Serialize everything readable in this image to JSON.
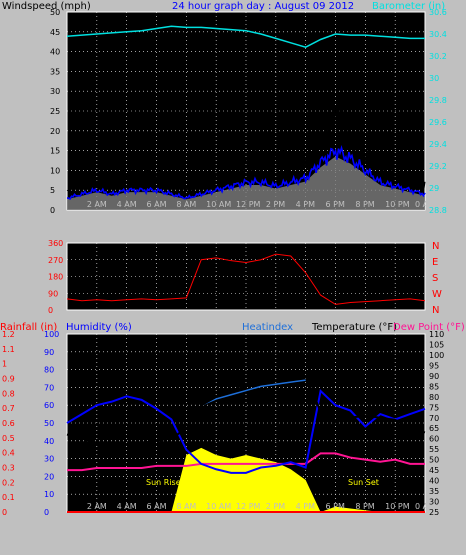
{
  "colors": {
    "background": "#c0c0c0",
    "plot": "#000000",
    "wind": "#000000",
    "gust_fill": "#808080",
    "wind_avg": "#0000ff",
    "barometer": "#00e0e0",
    "direction": "#ff0000",
    "humidity": "#0000ff",
    "temperature": "#000000",
    "dewpoint": "#ff1493",
    "heatindex": "#1e6fd9",
    "solar": "#ffff00",
    "rainfall": "#ff0000",
    "title": "#0000ff"
  },
  "chart_data": [
    {
      "type": "line",
      "title": "24 hour graph day : August 09 2012",
      "ylabel": "Windspeed (mph)",
      "y2label": "Barometer (in)",
      "x_tick_labels": [
        "2 AM",
        "4 AM",
        "6 AM",
        "8 AM",
        "10 AM",
        "12 PM",
        "2 PM",
        "4 PM",
        "6 PM",
        "8 PM",
        "10 PM",
        "0 AM"
      ],
      "ylim": [
        0,
        50
      ],
      "y_ticks": [
        "0",
        "5",
        "10",
        "15",
        "20",
        "25",
        "30",
        "35",
        "40",
        "45",
        "50"
      ],
      "y2lim": [
        28.8,
        30.6
      ],
      "y2_ticks": [
        "28.8",
        "29",
        "29.2",
        "29.4",
        "29.6",
        "29.8",
        "30",
        "30.2",
        "30.4",
        "30.6"
      ],
      "x_hours": [
        0,
        1,
        2,
        3,
        4,
        5,
        6,
        7,
        8,
        9,
        10,
        11,
        12,
        13,
        14,
        15,
        16,
        17,
        18,
        19,
        20,
        21,
        22,
        23,
        24
      ],
      "series": [
        {
          "key": "gust",
          "values": [
            5,
            7,
            8,
            7,
            9,
            9,
            10,
            7,
            5,
            7,
            8,
            10,
            11,
            12,
            12,
            12,
            14,
            19,
            26,
            21,
            16,
            11,
            9,
            8,
            6
          ]
        },
        {
          "key": "wind_avg",
          "values": [
            3,
            4,
            5,
            4,
            5,
            5,
            5,
            4,
            3,
            4,
            5,
            6,
            7,
            7,
            6,
            7,
            8,
            12,
            15,
            13,
            10,
            7,
            6,
            5,
            4
          ]
        },
        {
          "key": "barometer",
          "values": [
            30.38,
            30.39,
            30.4,
            30.41,
            30.42,
            30.43,
            30.45,
            30.47,
            30.46,
            30.46,
            30.45,
            30.44,
            30.43,
            30.4,
            30.36,
            30.32,
            30.28,
            30.35,
            30.4,
            30.39,
            30.39,
            30.38,
            30.37,
            30.36,
            30.36
          ]
        }
      ]
    },
    {
      "type": "scatter",
      "y_tick_labels": [
        "0",
        "90",
        "180",
        "270",
        "360"
      ],
      "ylim": [
        0,
        360
      ],
      "compass_labels": [
        "N",
        "W",
        "S",
        "E",
        "N"
      ],
      "x_hours": [
        0,
        1,
        2,
        3,
        4,
        5,
        6,
        7,
        8,
        9,
        10,
        11,
        12,
        13,
        14,
        15,
        16,
        17,
        18,
        19,
        20,
        21,
        22,
        23,
        24
      ],
      "series": [
        {
          "key": "direction",
          "values": [
            60,
            50,
            55,
            50,
            55,
            60,
            55,
            60,
            65,
            270,
            280,
            265,
            255,
            270,
            300,
            290,
            200,
            80,
            30,
            40,
            45,
            50,
            55,
            60,
            50
          ]
        }
      ]
    },
    {
      "type": "line",
      "left_labels": {
        "rainfall": "Rainfall (in)",
        "humidity": "Humidity (%)"
      },
      "right_labels": {
        "heatindex": "Heatindex",
        "temperature": "Temperature (°F)",
        "dewpoint": "Dew Point (°F)"
      },
      "rain_ticks": [
        "0",
        "0.1",
        "0.2",
        "0.3",
        "0.4",
        "0.5",
        "0.6",
        "0.7",
        "0.8",
        "0.9",
        "1",
        "1.1",
        "1.2"
      ],
      "humidity_ticks": [
        "0",
        "10",
        "20",
        "30",
        "40",
        "50",
        "60",
        "70",
        "80",
        "90",
        "100"
      ],
      "temp_ticks": [
        "25",
        "30",
        "35",
        "40",
        "45",
        "50",
        "55",
        "60",
        "65",
        "70",
        "75",
        "80",
        "85",
        "90",
        "95",
        "100",
        "105",
        "110"
      ],
      "temp_ylim": [
        25,
        110
      ],
      "annotations": {
        "sunrise": "Sun Rise",
        "sunset": "Sun Set"
      },
      "x_hours": [
        0,
        1,
        2,
        3,
        4,
        5,
        6,
        7,
        8,
        9,
        10,
        11,
        12,
        13,
        14,
        15,
        16,
        17,
        18,
        19,
        20,
        21,
        22,
        23,
        24
      ],
      "series": [
        {
          "key": "temperature",
          "values": [
            62,
            60,
            58,
            57,
            57,
            58,
            59,
            60,
            65,
            76,
            80,
            83,
            85,
            87,
            88,
            89,
            90,
            73,
            68,
            70,
            71,
            70,
            69,
            65,
            63
          ]
        },
        {
          "key": "heatindex",
          "values": [
            null,
            null,
            null,
            null,
            null,
            null,
            null,
            null,
            null,
            76,
            79,
            81,
            83,
            85,
            86,
            87,
            88,
            null,
            null,
            null,
            null,
            null,
            null,
            null,
            null
          ]
        },
        {
          "key": "humidity",
          "values": [
            50,
            55,
            60,
            62,
            65,
            63,
            58,
            52,
            35,
            27,
            24,
            22,
            22,
            25,
            26,
            28,
            25,
            68,
            60,
            57,
            48,
            55,
            52,
            55,
            58
          ]
        },
        {
          "key": "dewpoint",
          "values": [
            45,
            45,
            46,
            46,
            46,
            46,
            47,
            47,
            47,
            48,
            48,
            48,
            48,
            48,
            48,
            48,
            48,
            53,
            53,
            51,
            50,
            49,
            50,
            48,
            48
          ]
        },
        {
          "key": "solar",
          "values": [
            0,
            0,
            0,
            0,
            0,
            0,
            0,
            0,
            32,
            36,
            32,
            30,
            32,
            30,
            28,
            24,
            18,
            0,
            3,
            2,
            1,
            0,
            0,
            0,
            0
          ]
        },
        {
          "key": "rainfall",
          "values": [
            0,
            0,
            0,
            0,
            0,
            0,
            0,
            0,
            0,
            0,
            0,
            0,
            0,
            0,
            0,
            0,
            0,
            0,
            0,
            0,
            0,
            0,
            0,
            0,
            0
          ]
        }
      ]
    }
  ]
}
